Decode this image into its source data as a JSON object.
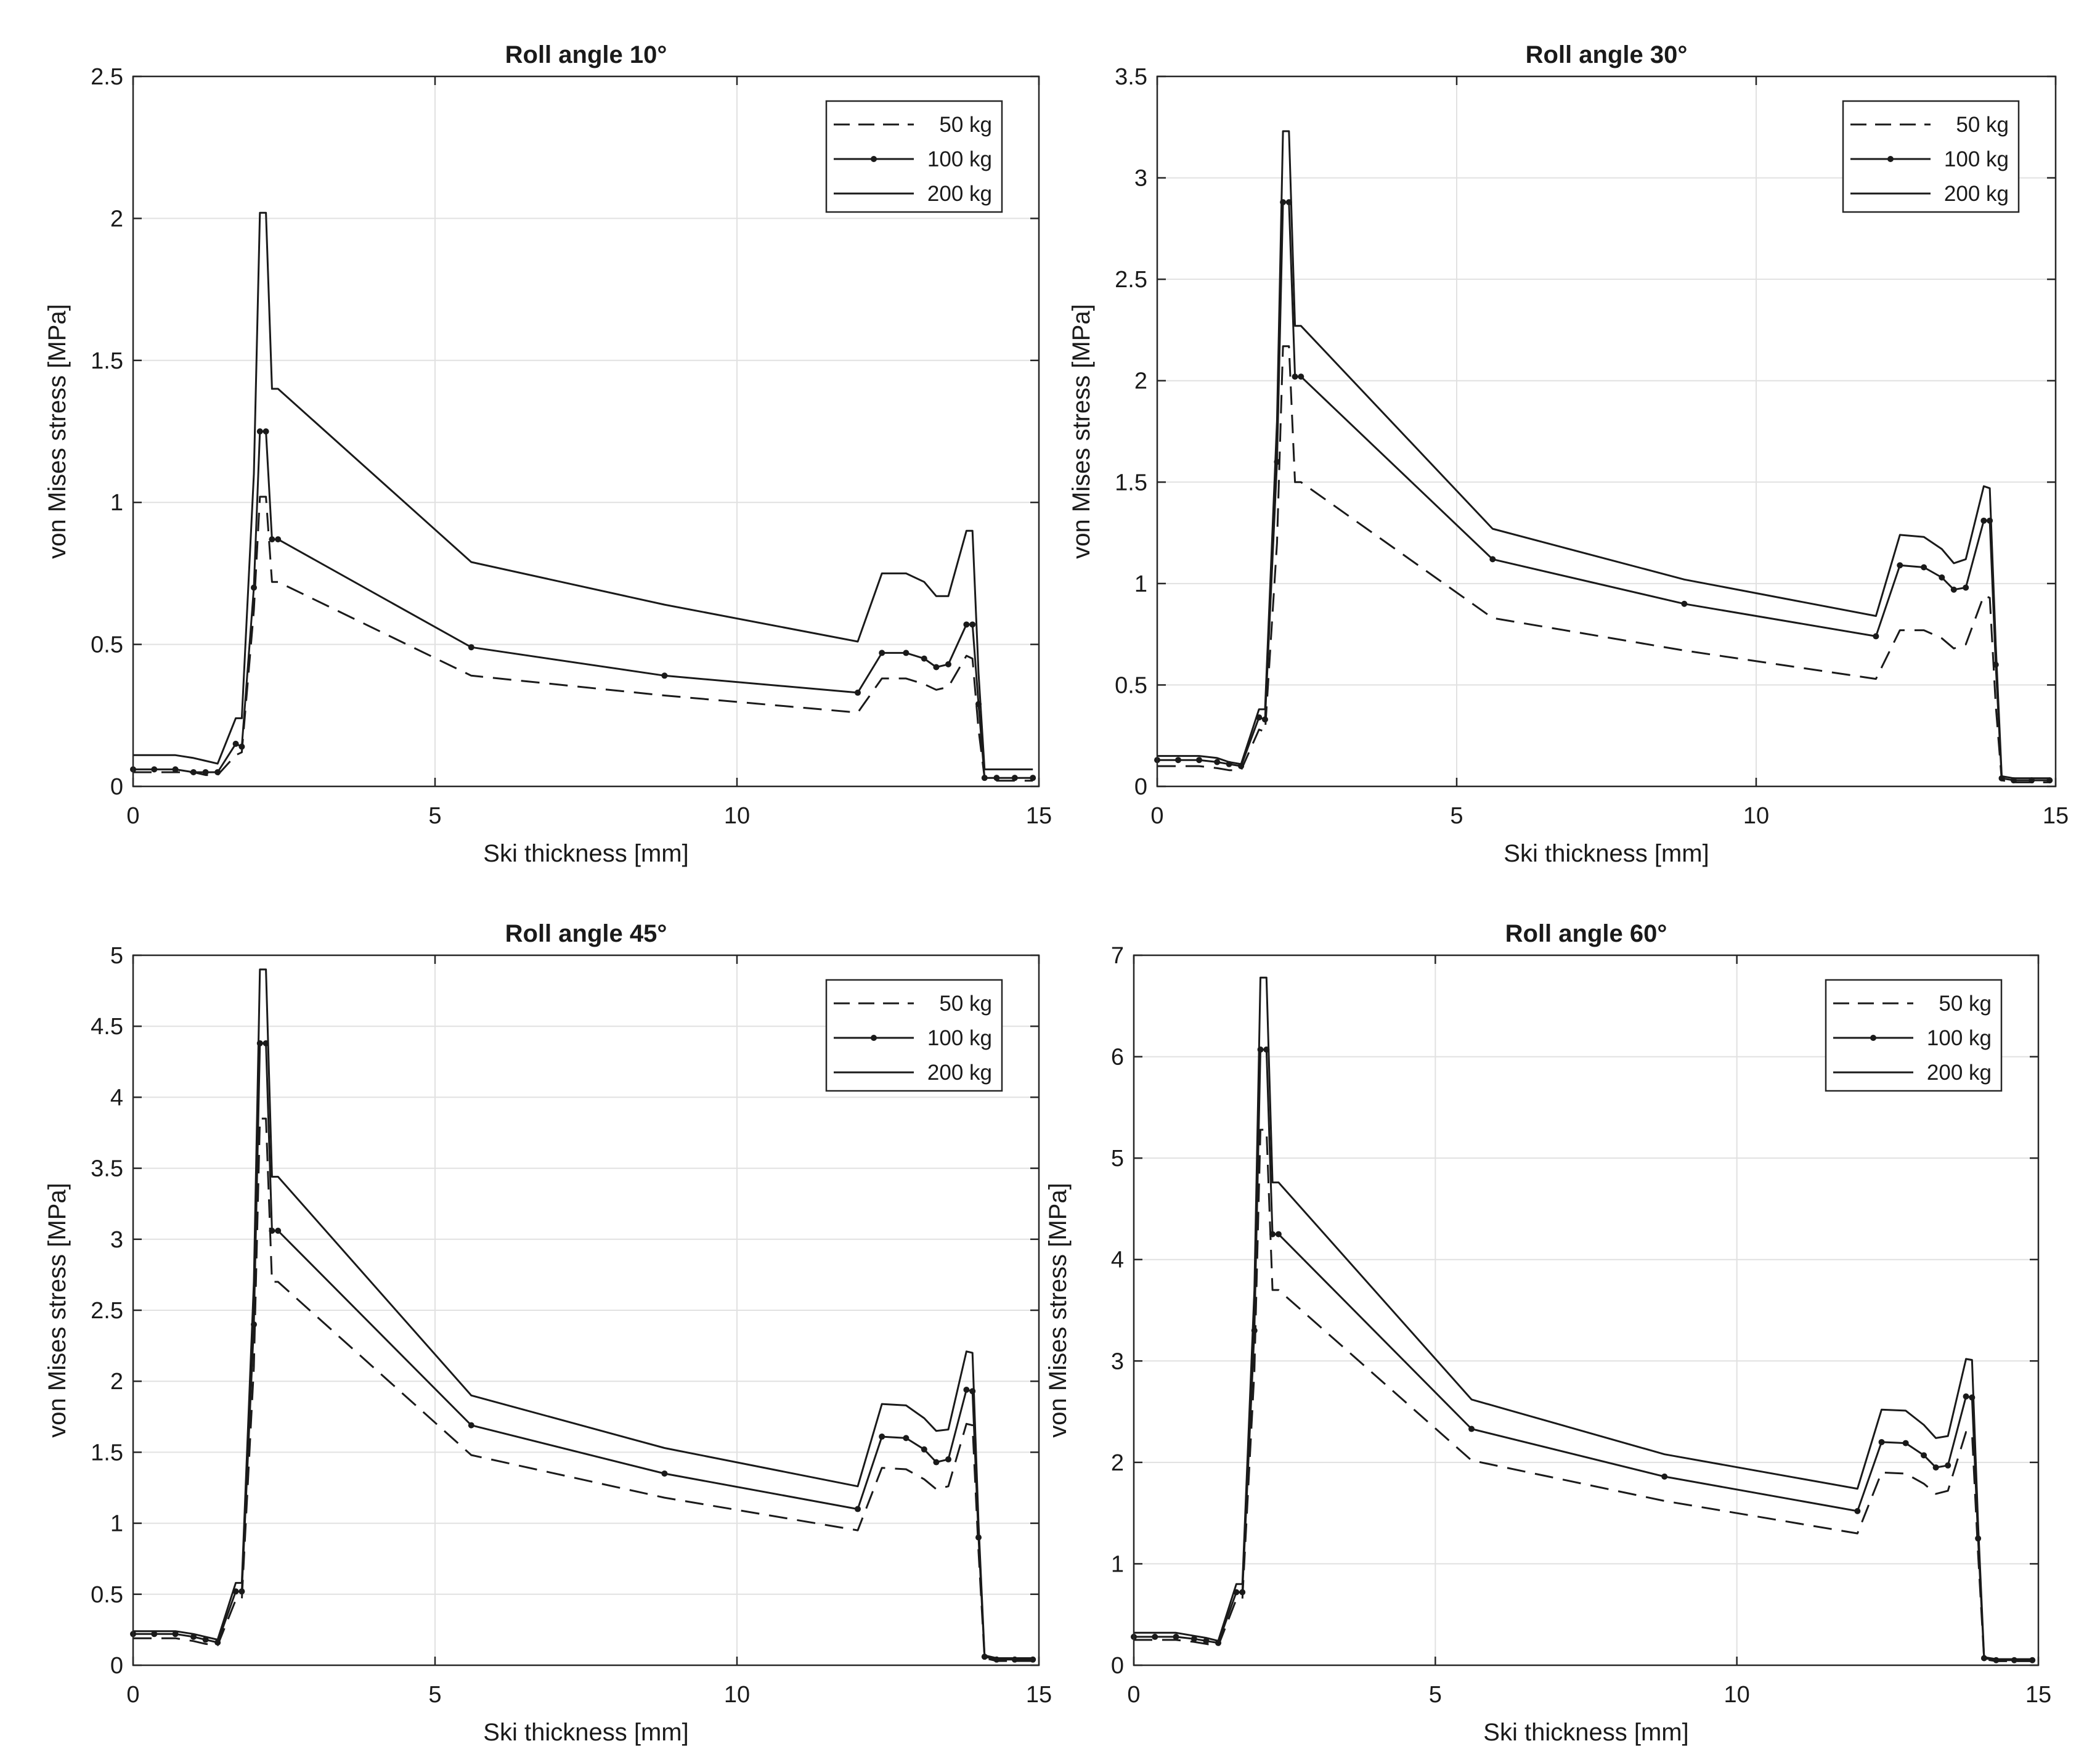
{
  "figure_title": "",
  "chart_data": [
    {
      "type": "line",
      "title": "Roll angle 10°",
      "xlabel": "Ski thickness [mm]",
      "ylabel": "von Mises stress [MPa]",
      "xlim": [
        0,
        15
      ],
      "ylim": [
        0,
        2.5
      ],
      "xticks": [
        0,
        5,
        10,
        15
      ],
      "xtick_labels": [
        "0",
        "5",
        "10",
        "15"
      ],
      "yticks": [
        0,
        0.5,
        1,
        1.5,
        2,
        2.5
      ],
      "ytick_labels": [
        "0",
        "0.5",
        "1",
        "1.5",
        "2",
        "2.5"
      ],
      "grid": true,
      "legend_position": "top-right",
      "x": [
        0,
        0.35,
        0.7,
        1.0,
        1.2,
        1.4,
        1.7,
        1.8,
        2.0,
        2.1,
        2.2,
        2.3,
        2.4,
        5.6,
        8.8,
        12.0,
        12.4,
        12.8,
        13.1,
        13.3,
        13.5,
        13.8,
        13.9,
        14.0,
        14.1,
        14.3,
        14.6,
        14.9
      ],
      "series": [
        {
          "name": "50 kg",
          "style": "dashed",
          "values": [
            0.05,
            0.05,
            0.05,
            0.05,
            0.04,
            0.04,
            0.11,
            0.12,
            0.62,
            1.02,
            1.02,
            0.72,
            0.72,
            0.39,
            0.32,
            0.26,
            0.38,
            0.38,
            0.36,
            0.34,
            0.35,
            0.46,
            0.45,
            0.2,
            0.03,
            0.02,
            0.02,
            0.02
          ]
        },
        {
          "name": "100 kg",
          "style": "solid-dot",
          "values": [
            0.06,
            0.06,
            0.06,
            0.05,
            0.05,
            0.05,
            0.15,
            0.14,
            0.7,
            1.25,
            1.25,
            0.87,
            0.87,
            0.49,
            0.39,
            0.33,
            0.47,
            0.47,
            0.45,
            0.42,
            0.43,
            0.57,
            0.57,
            0.29,
            0.03,
            0.03,
            0.03,
            0.03
          ]
        },
        {
          "name": "200 kg",
          "style": "solid",
          "values": [
            0.11,
            0.11,
            0.11,
            0.1,
            0.09,
            0.08,
            0.24,
            0.24,
            1.1,
            2.02,
            2.02,
            1.4,
            1.4,
            0.79,
            0.64,
            0.51,
            0.75,
            0.75,
            0.72,
            0.67,
            0.67,
            0.9,
            0.9,
            0.4,
            0.06,
            0.06,
            0.06,
            0.06
          ]
        }
      ]
    },
    {
      "type": "line",
      "title": "Roll angle 30°",
      "xlabel": "Ski thickness [mm]",
      "ylabel": "von Mises stress [MPa]",
      "xlim": [
        0,
        15
      ],
      "ylim": [
        0,
        3.5
      ],
      "xticks": [
        0,
        5,
        10,
        15
      ],
      "xtick_labels": [
        "0",
        "5",
        "10",
        "15"
      ],
      "yticks": [
        0,
        0.5,
        1,
        1.5,
        2,
        2.5,
        3,
        3.5
      ],
      "ytick_labels": [
        "0",
        "0.5",
        "1",
        "1.5",
        "2",
        "2.5",
        "3",
        "3.5"
      ],
      "grid": true,
      "legend_position": "top-right",
      "x": [
        0,
        0.35,
        0.7,
        1.0,
        1.2,
        1.4,
        1.7,
        1.8,
        2.0,
        2.1,
        2.2,
        2.3,
        2.4,
        5.6,
        8.8,
        12.0,
        12.4,
        12.8,
        13.1,
        13.3,
        13.5,
        13.8,
        13.9,
        14.0,
        14.1,
        14.3,
        14.6,
        14.9
      ],
      "series": [
        {
          "name": "50 kg",
          "style": "dashed",
          "values": [
            0.1,
            0.1,
            0.1,
            0.09,
            0.08,
            0.08,
            0.28,
            0.27,
            1.2,
            2.17,
            2.17,
            1.5,
            1.5,
            0.83,
            0.67,
            0.53,
            0.77,
            0.77,
            0.73,
            0.68,
            0.7,
            0.94,
            0.93,
            0.4,
            0.03,
            0.02,
            0.02,
            0.02
          ]
        },
        {
          "name": "100 kg",
          "style": "solid-dot",
          "values": [
            0.13,
            0.13,
            0.13,
            0.12,
            0.11,
            0.1,
            0.34,
            0.33,
            1.6,
            2.88,
            2.88,
            2.02,
            2.02,
            1.12,
            0.9,
            0.74,
            1.09,
            1.08,
            1.03,
            0.97,
            0.98,
            1.31,
            1.31,
            0.6,
            0.04,
            0.03,
            0.03,
            0.03
          ]
        },
        {
          "name": "200 kg",
          "style": "solid",
          "values": [
            0.15,
            0.15,
            0.15,
            0.14,
            0.12,
            0.11,
            0.38,
            0.38,
            1.8,
            3.23,
            3.23,
            2.27,
            2.27,
            1.27,
            1.02,
            0.84,
            1.24,
            1.23,
            1.17,
            1.1,
            1.12,
            1.48,
            1.47,
            0.7,
            0.05,
            0.04,
            0.04,
            0.04
          ]
        }
      ]
    },
    {
      "type": "line",
      "title": "Roll angle 45°",
      "xlabel": "Ski thickness [mm]",
      "ylabel": "von Mises stress [MPa]",
      "xlim": [
        0,
        15
      ],
      "ylim": [
        0,
        5
      ],
      "xticks": [
        0,
        5,
        10,
        15
      ],
      "xtick_labels": [
        "0",
        "5",
        "10",
        "15"
      ],
      "yticks": [
        0,
        0.5,
        1,
        1.5,
        2,
        2.5,
        3,
        3.5,
        4,
        4.5,
        5
      ],
      "ytick_labels": [
        "0",
        "0.5",
        "1",
        "1.5",
        "2",
        "2.5",
        "3",
        "3.5",
        "4",
        "4.5",
        "5"
      ],
      "grid": true,
      "legend_position": "top-right",
      "x": [
        0,
        0.35,
        0.7,
        1.0,
        1.2,
        1.4,
        1.7,
        1.8,
        2.0,
        2.1,
        2.2,
        2.3,
        2.4,
        5.6,
        8.8,
        12.0,
        12.4,
        12.8,
        13.1,
        13.3,
        13.5,
        13.8,
        13.9,
        14.0,
        14.1,
        14.3,
        14.6,
        14.9
      ],
      "series": [
        {
          "name": "50 kg",
          "style": "dashed",
          "values": [
            0.19,
            0.19,
            0.19,
            0.17,
            0.15,
            0.14,
            0.46,
            0.46,
            2.1,
            3.85,
            3.85,
            2.7,
            2.7,
            1.48,
            1.18,
            0.95,
            1.39,
            1.38,
            1.31,
            1.24,
            1.26,
            1.7,
            1.69,
            0.8,
            0.05,
            0.03,
            0.03,
            0.03
          ]
        },
        {
          "name": "100 kg",
          "style": "solid-dot",
          "values": [
            0.22,
            0.22,
            0.22,
            0.2,
            0.18,
            0.16,
            0.52,
            0.52,
            2.4,
            4.38,
            4.38,
            3.06,
            3.06,
            1.69,
            1.35,
            1.1,
            1.61,
            1.6,
            1.52,
            1.43,
            1.45,
            1.94,
            1.93,
            0.9,
            0.06,
            0.04,
            0.04,
            0.04
          ]
        },
        {
          "name": "200 kg",
          "style": "solid",
          "values": [
            0.24,
            0.24,
            0.24,
            0.22,
            0.2,
            0.18,
            0.58,
            0.58,
            2.7,
            4.9,
            4.9,
            3.44,
            3.44,
            1.9,
            1.53,
            1.26,
            1.84,
            1.83,
            1.74,
            1.65,
            1.66,
            2.21,
            2.2,
            1.0,
            0.07,
            0.05,
            0.05,
            0.05
          ]
        }
      ]
    },
    {
      "type": "line",
      "title": "Roll angle 60°",
      "xlabel": "Ski thickness [mm]",
      "ylabel": "von Mises stress [MPa]",
      "xlim": [
        0,
        15
      ],
      "ylim": [
        0,
        7
      ],
      "xticks": [
        0,
        5,
        10,
        15
      ],
      "xtick_labels": [
        "0",
        "5",
        "10",
        "15"
      ],
      "yticks": [
        0,
        1,
        2,
        3,
        4,
        5,
        6,
        7
      ],
      "ytick_labels": [
        "0",
        "1",
        "2",
        "3",
        "4",
        "5",
        "6",
        "7"
      ],
      "grid": true,
      "legend_position": "top-right",
      "x": [
        0,
        0.35,
        0.7,
        1.0,
        1.2,
        1.4,
        1.7,
        1.8,
        2.0,
        2.1,
        2.2,
        2.3,
        2.4,
        5.6,
        8.8,
        12.0,
        12.4,
        12.8,
        13.1,
        13.3,
        13.5,
        13.8,
        13.9,
        14.0,
        14.1,
        14.3,
        14.6,
        14.9
      ],
      "series": [
        {
          "name": "50 kg",
          "style": "dashed",
          "values": [
            0.25,
            0.25,
            0.25,
            0.23,
            0.21,
            0.19,
            0.65,
            0.65,
            2.9,
            5.28,
            5.28,
            3.7,
            3.7,
            2.02,
            1.62,
            1.3,
            1.9,
            1.89,
            1.79,
            1.69,
            1.72,
            2.3,
            2.29,
            1.1,
            0.06,
            0.04,
            0.04,
            0.04
          ]
        },
        {
          "name": "100 kg",
          "style": "solid-dot",
          "values": [
            0.28,
            0.28,
            0.28,
            0.26,
            0.24,
            0.22,
            0.72,
            0.72,
            3.3,
            6.07,
            6.07,
            4.25,
            4.25,
            2.33,
            1.86,
            1.52,
            2.2,
            2.19,
            2.07,
            1.95,
            1.97,
            2.65,
            2.64,
            1.25,
            0.07,
            0.05,
            0.05,
            0.05
          ]
        },
        {
          "name": "200 kg",
          "style": "solid",
          "values": [
            0.32,
            0.32,
            0.32,
            0.29,
            0.27,
            0.24,
            0.8,
            0.8,
            3.7,
            6.78,
            6.78,
            4.76,
            4.76,
            2.62,
            2.08,
            1.74,
            2.52,
            2.51,
            2.37,
            2.24,
            2.26,
            3.02,
            3.01,
            1.4,
            0.08,
            0.06,
            0.06,
            0.06
          ]
        }
      ]
    }
  ]
}
